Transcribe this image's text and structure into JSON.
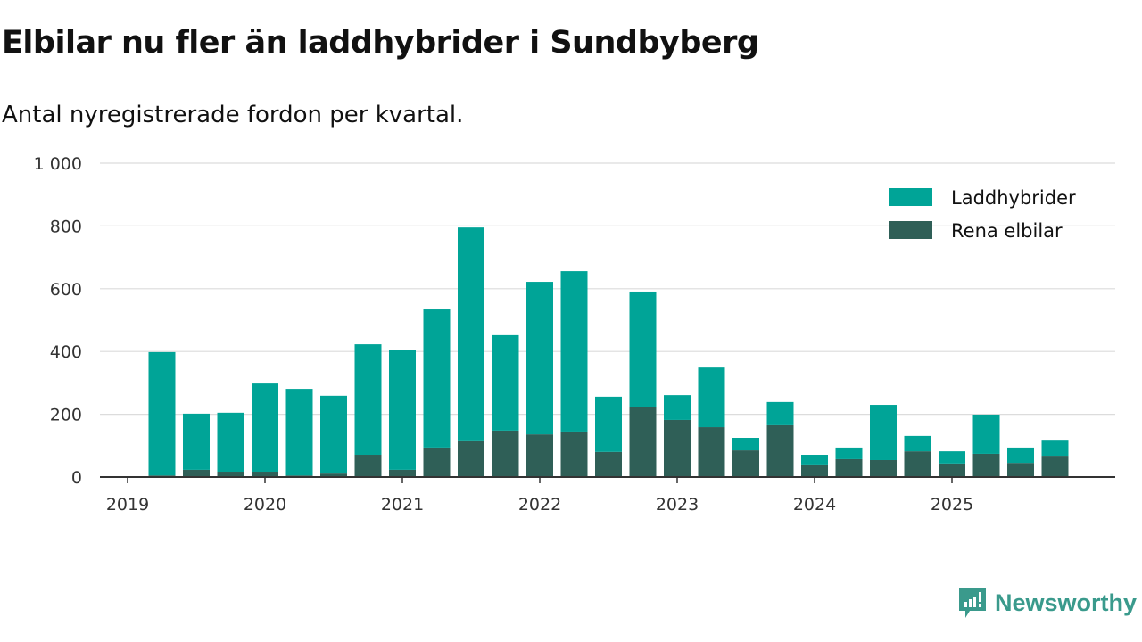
{
  "title": "Elbilar nu fler än laddhybrider i Sundbyberg",
  "subtitle": "Antal nyregistrerade fordon per kvartal.",
  "brand": {
    "name": "Newsworthy",
    "color": "#3a9a8c"
  },
  "chart_data": {
    "type": "bar",
    "stacked": true,
    "title": "Elbilar nu fler än laddhybrider i Sundbyberg",
    "subtitle": "Antal nyregistrerade fordon per kvartal.",
    "xlabel": "",
    "ylabel": "",
    "ylim": [
      0,
      1000
    ],
    "yticks": [
      0,
      200,
      400,
      600,
      800,
      1000
    ],
    "ytick_labels": [
      "0",
      "200",
      "400",
      "600",
      "800",
      "1 000"
    ],
    "xtick_labels": [
      "2019",
      "2020",
      "2021",
      "2022",
      "2023",
      "2024",
      "2025"
    ],
    "grid": true,
    "legend_position": "top-right",
    "categories": [
      "2019 Q1",
      "2019 Q2",
      "2019 Q3",
      "2019 Q4",
      "2020 Q1",
      "2020 Q2",
      "2020 Q3",
      "2020 Q4",
      "2021 Q1",
      "2021 Q2",
      "2021 Q3",
      "2021 Q4",
      "2022 Q1",
      "2022 Q2",
      "2022 Q3",
      "2022 Q4",
      "2023 Q1",
      "2023 Q2",
      "2023 Q3",
      "2023 Q4",
      "2024 Q1",
      "2024 Q2",
      "2024 Q3",
      "2024 Q4",
      "2025 Q1",
      "2025 Q2",
      "2025 Q3"
    ],
    "series": [
      {
        "name": "Rena elbilar",
        "color": "#2f5f57",
        "values": [
          5,
          23,
          17,
          17,
          5,
          11,
          71,
          23,
          94,
          114,
          148,
          136,
          145,
          80,
          222,
          182,
          159,
          85,
          165,
          40,
          57,
          54,
          82,
          43,
          74,
          45,
          68
        ]
      },
      {
        "name": "Laddhybrider",
        "color": "#00a497",
        "values": [
          393,
          179,
          188,
          281,
          276,
          248,
          352,
          383,
          440,
          681,
          304,
          486,
          511,
          176,
          369,
          79,
          190,
          40,
          74,
          31,
          37,
          176,
          49,
          39,
          125,
          49,
          48
        ]
      }
    ],
    "legend_order": [
      "Laddhybrider",
      "Rena elbilar"
    ]
  }
}
